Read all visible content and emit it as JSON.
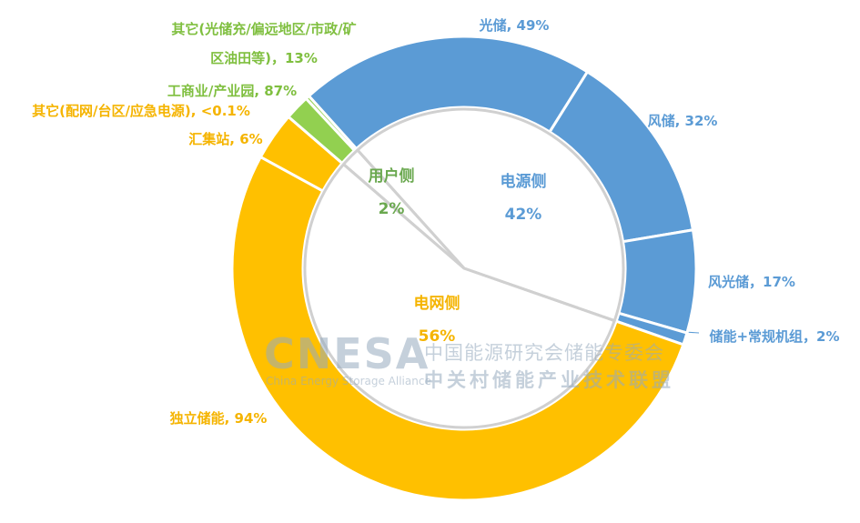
{
  "chart_data": {
    "type": "nested_pie",
    "series": [
      {
        "name": "电源侧",
        "value": 42,
        "value_label": "42%",
        "color": "#5b9bd5",
        "segments": {
          "values": [
            49,
            32,
            17,
            2
          ],
          "value_labels": [
            "光储, 49%",
            "风储, 32%",
            "风光储，17%",
            "储能+常规机组，2%"
          ]
        }
      },
      {
        "name": "电网侧",
        "value": 56,
        "value_label": "56%",
        "color": "#ffc000",
        "segments": {
          "values": [
            94,
            6,
            0.1
          ],
          "value_labels": [
            "独立储能, 94%",
            "汇集站, 6%",
            "其它(配网/台区/应急电源), <0.1%"
          ]
        }
      },
      {
        "name": "用户侧",
        "value": 2,
        "value_label": "2%",
        "color": "#92d050",
        "segments": {
          "values": [
            87,
            13
          ],
          "value_labels": [
            "工商业/产业园, 87%",
            "其它(光储充/偏远地区/市政/矿区油田等)，13%"
          ]
        }
      }
    ],
    "watermark": {
      "logo": "CNESA",
      "subtitle": "China Energy Storage Alliance",
      "lines": [
        "中国能源研究会储能专委会",
        "中关村储能产业技术联盟"
      ]
    }
  }
}
